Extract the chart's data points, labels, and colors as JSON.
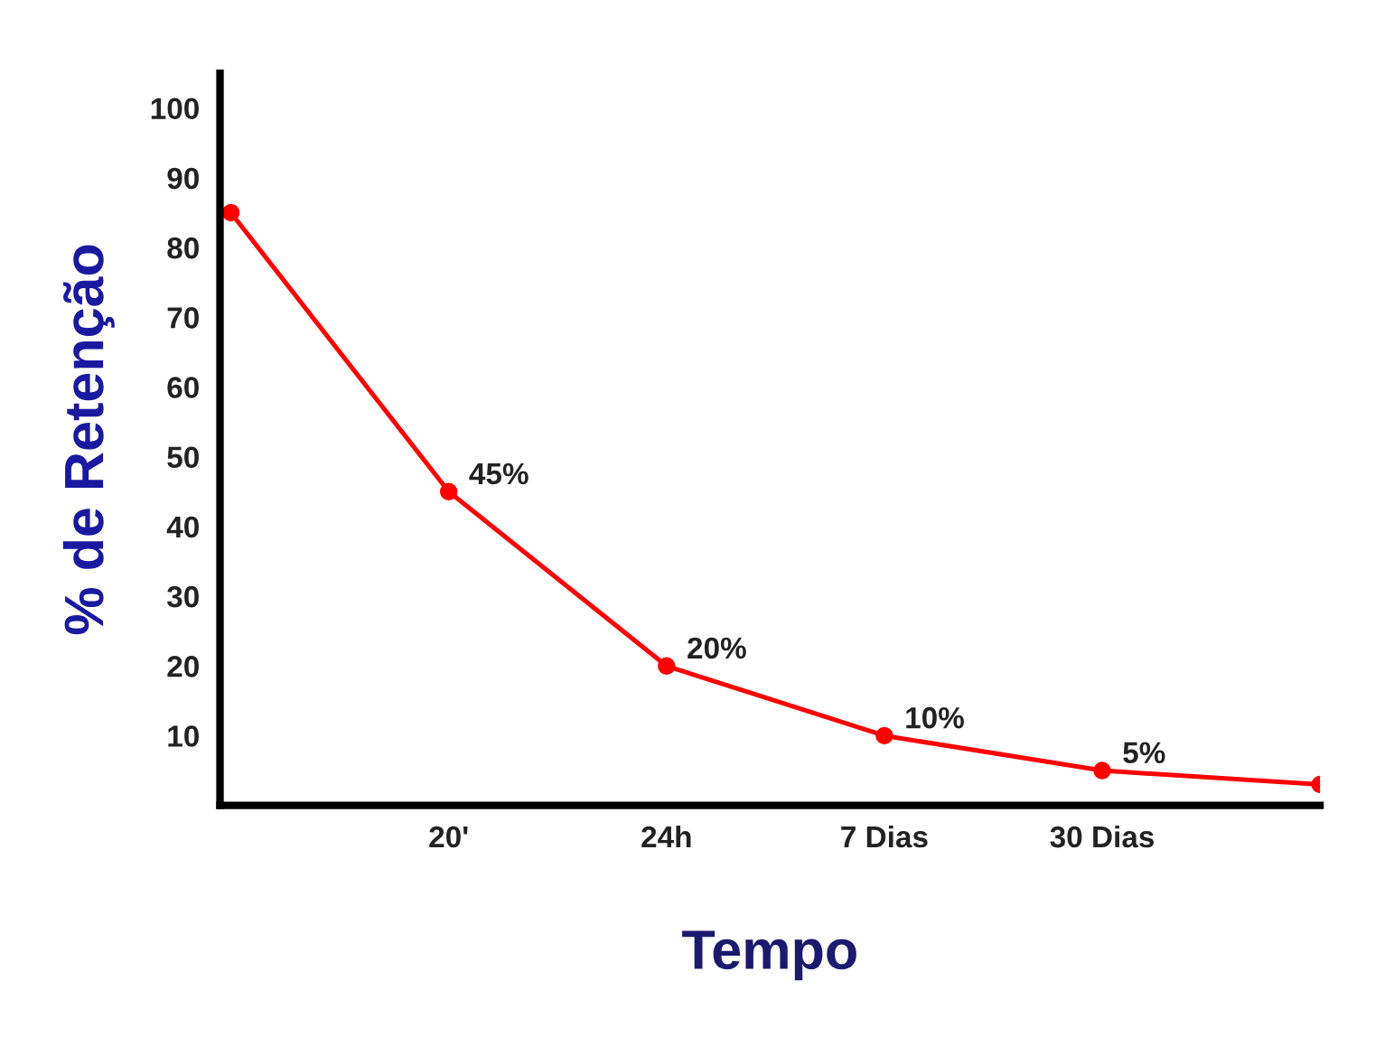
{
  "chart_data": {
    "type": "line",
    "xlabel": "Tempo",
    "ylabel": "% de Retenção",
    "categories": [
      null,
      "20'",
      "24h",
      "7 Dias",
      "30 Dias",
      null
    ],
    "series": [
      {
        "color": "#ff0000",
        "values": [
          85,
          45,
          20,
          10,
          5,
          3
        ],
        "value_labels": [
          null,
          "45%",
          "20%",
          "10%",
          "5%",
          null
        ]
      }
    ],
    "ylim": [
      0,
      105
    ],
    "yticks": [
      10,
      20,
      30,
      40,
      50,
      60,
      70,
      80,
      90,
      100
    ],
    "marker": "circle",
    "line_style": "solid",
    "grid": false,
    "legend": false
  }
}
